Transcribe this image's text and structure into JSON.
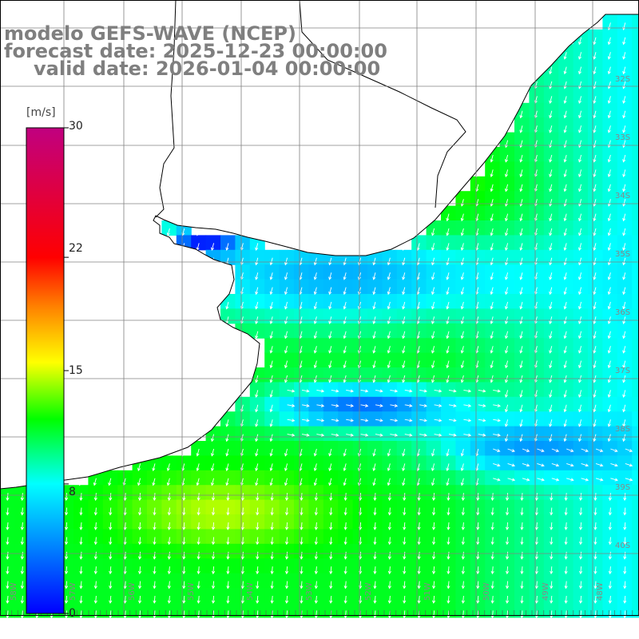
{
  "title": {
    "model": "modelo GEFS-WAVE (NCEP)",
    "forecast": "forecast date: 2025-12-23 00:00:00",
    "valid": "valid date: 2026-01-04 00:00:00"
  },
  "colorbar": {
    "unit": "[m/s]",
    "min": 0,
    "max": 30,
    "ticks": [
      "30",
      "22",
      "15",
      "8",
      "0"
    ],
    "tick_values": [
      30,
      22,
      15,
      8,
      0
    ],
    "colors": [
      "#0000ff",
      "#00ffff",
      "#00ff00",
      "#ffff00",
      "#ff8000",
      "#ff0000",
      "#c00080"
    ]
  },
  "lat_labels": [
    "32S",
    "33S",
    "34S",
    "35S",
    "36S",
    "37S",
    "38S",
    "39S",
    "40S"
  ],
  "lon_labels": [
    "58W",
    "57W",
    "56W",
    "55W",
    "54W",
    "53W",
    "52W",
    "51W",
    "50W",
    "49W",
    "48W"
  ],
  "map": {
    "land_color": "#ffffff",
    "coast_color": "#000000",
    "grid_color": "#808080",
    "arrow_color": "#ffffff"
  }
}
